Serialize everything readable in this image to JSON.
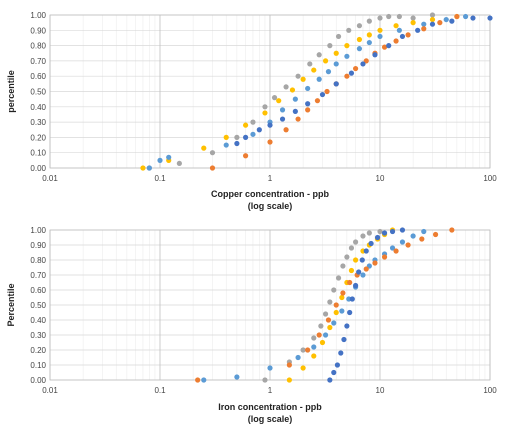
{
  "chart_data": [
    {
      "type": "scatter",
      "x_scale": "log",
      "xlim": [
        0.01,
        100
      ],
      "ylim": [
        0,
        1
      ],
      "x_ticks": [
        "0.01",
        "0.1",
        "1",
        "10",
        "100"
      ],
      "y_ticks": [
        "0.00",
        "0.10",
        "0.20",
        "0.30",
        "0.40",
        "0.50",
        "0.60",
        "0.70",
        "0.80",
        "0.90",
        "1.00"
      ],
      "xlabel_line1": "Copper concentration - ppb",
      "xlabel_line2": "(log scale)",
      "ylabel": "percentile",
      "grid": true,
      "series": [
        {
          "color": "#a6a6a6",
          "x": [
            0.08,
            0.15,
            0.3,
            0.5,
            0.7,
            0.9,
            1.1,
            1.4,
            1.8,
            2.3,
            2.8,
            3.5,
            4.2,
            5.2,
            6.5,
            8.0,
            10.0,
            12.0,
            15.0,
            20.0,
            30.0
          ],
          "y": [
            0.0,
            0.03,
            0.1,
            0.2,
            0.3,
            0.4,
            0.46,
            0.53,
            0.6,
            0.68,
            0.74,
            0.8,
            0.86,
            0.9,
            0.93,
            0.96,
            0.98,
            0.99,
            0.99,
            0.98,
            1.0
          ]
        },
        {
          "color": "#ffc000",
          "x": [
            0.07,
            0.12,
            0.25,
            0.4,
            0.6,
            0.9,
            1.2,
            1.6,
            2.0,
            2.5,
            3.2,
            4.0,
            5.0,
            6.5,
            8.0,
            10.0,
            14.0,
            20.0,
            30.0,
            50.0
          ],
          "y": [
            0.0,
            0.05,
            0.13,
            0.2,
            0.28,
            0.36,
            0.44,
            0.51,
            0.58,
            0.64,
            0.7,
            0.75,
            0.8,
            0.84,
            0.87,
            0.9,
            0.93,
            0.95,
            0.97,
            0.99
          ]
        },
        {
          "color": "#5b9bd5",
          "x": [
            0.08,
            0.1,
            0.12,
            0.4,
            0.7,
            1.0,
            1.3,
            1.7,
            2.2,
            2.8,
            3.4,
            4.0,
            5.0,
            6.5,
            8.0,
            10.0,
            15.0,
            25.0,
            40.0,
            60.0
          ],
          "y": [
            0.0,
            0.05,
            0.07,
            0.15,
            0.22,
            0.3,
            0.38,
            0.45,
            0.52,
            0.58,
            0.63,
            0.68,
            0.73,
            0.78,
            0.82,
            0.86,
            0.9,
            0.94,
            0.97,
            0.99
          ]
        },
        {
          "color": "#ed7d31",
          "x": [
            0.3,
            0.6,
            1.0,
            1.4,
            1.8,
            2.2,
            2.7,
            3.3,
            4.0,
            5.0,
            6.0,
            7.5,
            9.0,
            11.0,
            14.0,
            18.0,
            25.0,
            35.0,
            50.0
          ],
          "y": [
            0.0,
            0.08,
            0.17,
            0.25,
            0.32,
            0.38,
            0.44,
            0.5,
            0.55,
            0.6,
            0.65,
            0.7,
            0.75,
            0.79,
            0.83,
            0.87,
            0.91,
            0.95,
            0.99
          ]
        },
        {
          "color": "#4472c4",
          "x": [
            0.5,
            0.6,
            0.8,
            1.0,
            1.3,
            1.7,
            2.2,
            3.0,
            4.0,
            5.5,
            7.0,
            9.0,
            12.0,
            16.0,
            22.0,
            30.0,
            45.0,
            70.0,
            100.0
          ],
          "y": [
            0.16,
            0.2,
            0.25,
            0.28,
            0.32,
            0.37,
            0.42,
            0.48,
            0.55,
            0.62,
            0.68,
            0.74,
            0.8,
            0.86,
            0.9,
            0.94,
            0.96,
            0.98,
            0.98
          ]
        }
      ]
    },
    {
      "type": "scatter",
      "x_scale": "log",
      "xlim": [
        0.01,
        100
      ],
      "ylim": [
        0,
        1
      ],
      "x_ticks": [
        "0.01",
        "0.1",
        "1",
        "10",
        "100"
      ],
      "y_ticks": [
        "0.00",
        "0.10",
        "0.20",
        "0.30",
        "0.40",
        "0.50",
        "0.60",
        "0.70",
        "0.80",
        "0.90",
        "1.00"
      ],
      "xlabel_line1": "Iron concentration - ppb",
      "xlabel_line2": "(log scale)",
      "ylabel": "Percentile",
      "grid": true,
      "series": [
        {
          "color": "#a6a6a6",
          "x": [
            0.9,
            1.5,
            2.0,
            2.5,
            2.9,
            3.2,
            3.5,
            3.8,
            4.2,
            4.6,
            5.0,
            5.5,
            6.0,
            7.0,
            8.0,
            10.0
          ],
          "y": [
            0.0,
            0.12,
            0.2,
            0.28,
            0.36,
            0.44,
            0.52,
            0.6,
            0.68,
            0.76,
            0.82,
            0.88,
            0.92,
            0.96,
            0.98,
            0.99
          ]
        },
        {
          "color": "#ffc000",
          "x": [
            1.5,
            2.0,
            2.5,
            3.0,
            3.5,
            4.0,
            4.5,
            5.0,
            5.5,
            6.0,
            7.0,
            8.0,
            9.5,
            11.0,
            13.0
          ],
          "y": [
            0.0,
            0.08,
            0.16,
            0.25,
            0.35,
            0.45,
            0.55,
            0.65,
            0.73,
            0.8,
            0.86,
            0.9,
            0.94,
            0.97,
            1.0
          ]
        },
        {
          "color": "#5b9bd5",
          "x": [
            0.25,
            0.5,
            1.0,
            1.8,
            2.5,
            3.2,
            3.8,
            4.5,
            5.2,
            6.0,
            7.0,
            8.0,
            9.0,
            11.0,
            13.0,
            16.0,
            20.0,
            25.0
          ],
          "y": [
            0.0,
            0.02,
            0.08,
            0.15,
            0.22,
            0.3,
            0.38,
            0.46,
            0.54,
            0.62,
            0.7,
            0.76,
            0.8,
            0.84,
            0.88,
            0.92,
            0.96,
            0.99
          ]
        },
        {
          "color": "#ed7d31",
          "x": [
            0.22,
            1.5,
            2.2,
            2.8,
            3.4,
            4.0,
            4.6,
            5.3,
            6.2,
            7.5,
            9.0,
            11.0,
            14.0,
            18.0,
            24.0,
            32.0,
            45.0
          ],
          "y": [
            0.0,
            0.1,
            0.2,
            0.3,
            0.4,
            0.5,
            0.58,
            0.65,
            0.7,
            0.74,
            0.78,
            0.82,
            0.86,
            0.9,
            0.94,
            0.97,
            1.0
          ]
        },
        {
          "color": "#4472c4",
          "x": [
            3.5,
            3.8,
            4.1,
            4.4,
            4.7,
            5.0,
            5.3,
            5.6,
            6.0,
            6.4,
            6.9,
            7.5,
            8.3,
            9.5,
            11.0,
            13.0,
            16.0
          ],
          "y": [
            0.0,
            0.05,
            0.1,
            0.18,
            0.27,
            0.36,
            0.45,
            0.54,
            0.63,
            0.72,
            0.8,
            0.86,
            0.91,
            0.95,
            0.98,
            0.99,
            1.0
          ]
        }
      ]
    }
  ]
}
